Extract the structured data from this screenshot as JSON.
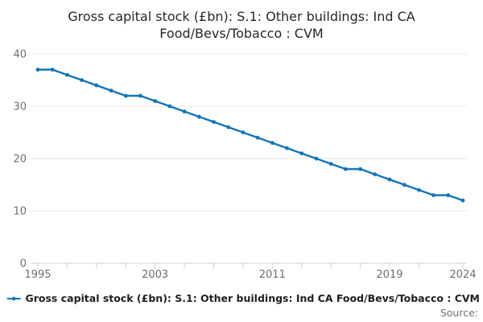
{
  "title": "Gross capital stock (£bn): S.1: Other buildings: Ind CA Food/Bevs/Tobacco : CVM",
  "legend": {
    "label": "Gross capital stock (£bn): S.1: Other buildings: Ind CA Food/Bevs/Tobacco : CVM",
    "marker": "line-dot-icon"
  },
  "source": {
    "label": "Source:"
  },
  "colors": {
    "line": "#1375b7",
    "gridline": "#e7e7e7",
    "axis": "#c9d5e0",
    "tick_label": "#6e6e6e"
  },
  "chart_data": {
    "type": "line",
    "title": "Gross capital stock (£bn): S.1: Other buildings: Ind CA Food/Bevs/Tobacco : CVM",
    "x": [
      1995,
      1996,
      1997,
      1998,
      1999,
      2000,
      2001,
      2002,
      2003,
      2004,
      2005,
      2006,
      2007,
      2008,
      2009,
      2010,
      2011,
      2012,
      2013,
      2014,
      2015,
      2016,
      2017,
      2018,
      2019,
      2020,
      2021,
      2022,
      2023,
      2024
    ],
    "values": [
      37,
      37,
      36,
      35,
      34,
      33,
      32,
      32,
      31,
      30,
      29,
      28,
      27,
      26,
      25,
      24,
      23,
      22,
      21,
      20,
      19,
      18,
      18,
      17,
      16,
      15,
      14,
      13,
      13,
      12
    ],
    "series": [
      {
        "name": "Gross capital stock (£bn): S.1: Other buildings: Ind CA Food/Bevs/Tobacco : CVM",
        "values": [
          37,
          37,
          36,
          35,
          34,
          33,
          32,
          32,
          31,
          30,
          29,
          28,
          27,
          26,
          25,
          24,
          23,
          22,
          21,
          20,
          19,
          18,
          18,
          17,
          16,
          15,
          14,
          13,
          13,
          12
        ]
      }
    ],
    "xlabel": "",
    "ylabel": "",
    "ylim": [
      0,
      40
    ],
    "yticks": [
      0,
      10,
      20,
      30,
      40
    ],
    "ytick_labels": [
      "0",
      "10",
      "20",
      "30",
      "40"
    ],
    "xtick_labeled_years": [
      1995,
      2003,
      2011,
      2019,
      2024
    ],
    "xtick_labels": [
      "1995",
      "2003",
      "2011",
      "2019",
      "2024"
    ],
    "xticks_minor_years": [
      1995,
      1997,
      1999,
      2001,
      2003,
      2005,
      2007,
      2009,
      2011,
      2013,
      2015,
      2017,
      2019,
      2021,
      2024
    ],
    "grid": true,
    "legend_position": "bottom-left",
    "marker": "circle",
    "line_color": "#1375b7"
  }
}
